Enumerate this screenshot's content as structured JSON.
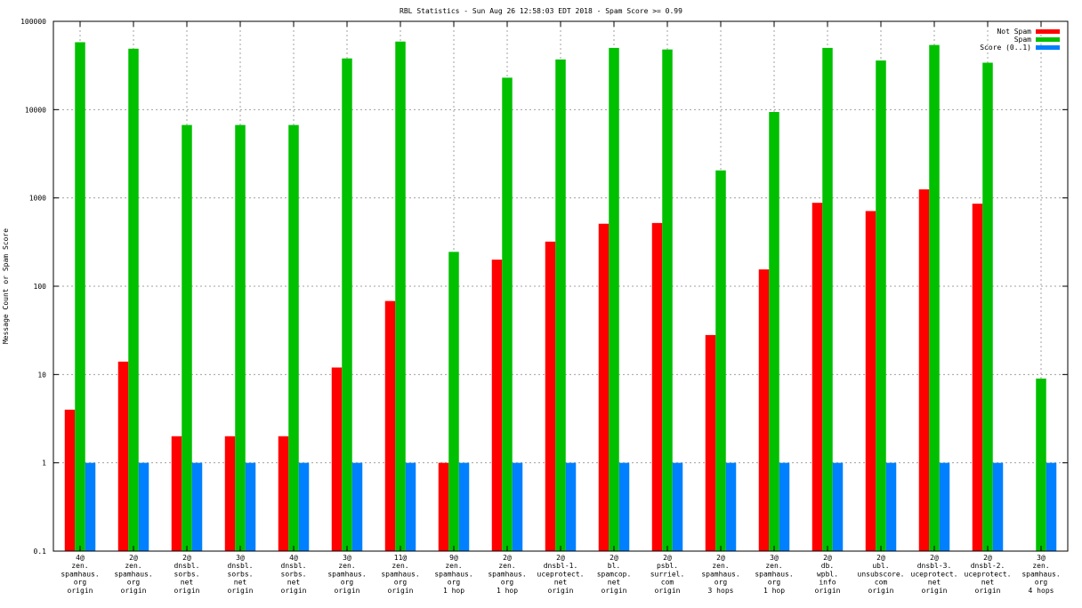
{
  "chart_data": {
    "type": "bar",
    "title": "RBL Statistics - Sun Aug 26 12:58:03 EDT 2018 - Spam Score >= 0.99",
    "xlabel": "",
    "ylabel": "Message Count or Spam Score",
    "yscale": "log",
    "ylim": [
      0.1,
      100000
    ],
    "yticks": [
      {
        "value": 100000,
        "label": "100000"
      },
      {
        "value": 10000,
        "label": "10000"
      },
      {
        "value": 1000,
        "label": "1000"
      },
      {
        "value": 100,
        "label": "100"
      },
      {
        "value": 10,
        "label": "10"
      },
      {
        "value": 1,
        "label": "1"
      },
      {
        "value": 0.1,
        "label": "0.1"
      }
    ],
    "grid": true,
    "legend_position": "top-right",
    "categories": [
      [
        "4@",
        "zen.",
        "spamhaus.",
        "org",
        "origin"
      ],
      [
        "2@",
        "zen.",
        "spamhaus.",
        "org",
        "origin"
      ],
      [
        "2@",
        "dnsbl.",
        "sorbs.",
        "net",
        "origin"
      ],
      [
        "3@",
        "dnsbl.",
        "sorbs.",
        "net",
        "origin"
      ],
      [
        "4@",
        "dnsbl.",
        "sorbs.",
        "net",
        "origin"
      ],
      [
        "3@",
        "zen.",
        "spamhaus.",
        "org",
        "origin"
      ],
      [
        "11@",
        "zen.",
        "spamhaus.",
        "org",
        "origin"
      ],
      [
        "9@",
        "zen.",
        "spamhaus.",
        "org",
        "1 hop"
      ],
      [
        "2@",
        "zen.",
        "spamhaus.",
        "org",
        "1 hop"
      ],
      [
        "2@",
        "dnsbl-1.",
        "uceprotect.",
        "net",
        "origin"
      ],
      [
        "2@",
        "bl.",
        "spamcop.",
        "net",
        "origin"
      ],
      [
        "2@",
        "psbl.",
        "surriel.",
        "com",
        "origin"
      ],
      [
        "2@",
        "zen.",
        "spamhaus.",
        "org",
        "3 hops"
      ],
      [
        "3@",
        "zen.",
        "spamhaus.",
        "org",
        "1 hop"
      ],
      [
        "2@",
        "db.",
        "wpbl.",
        "info",
        "origin"
      ],
      [
        "2@",
        "ubl.",
        "unsubscore.",
        "com",
        "origin"
      ],
      [
        "2@",
        "dnsbl-3.",
        "uceprotect.",
        "net",
        "origin"
      ],
      [
        "2@",
        "dnsbl-2.",
        "uceprotect.",
        "net",
        "origin"
      ],
      [
        "3@",
        "zen.",
        "spamhaus.",
        "org",
        "4 hops"
      ]
    ],
    "series": [
      {
        "name": "Not Spam",
        "color": "#ff0000",
        "values": [
          4,
          14,
          2,
          2,
          2,
          12,
          68,
          1,
          200,
          320,
          510,
          520,
          28,
          155,
          880,
          710,
          1250,
          860,
          null
        ]
      },
      {
        "name": "Spam",
        "color": "#00c000",
        "values": [
          58000,
          49000,
          6700,
          6700,
          6700,
          38000,
          59000,
          245,
          23000,
          37000,
          50000,
          48000,
          2050,
          9400,
          50000,
          36000,
          54000,
          34000,
          9
        ]
      },
      {
        "name": "Score (0..1)",
        "color": "#0080ff",
        "values": [
          1,
          1,
          1,
          1,
          1,
          1,
          1,
          1,
          1,
          1,
          1,
          1,
          1,
          1,
          1,
          1,
          1,
          1,
          1
        ]
      }
    ]
  }
}
